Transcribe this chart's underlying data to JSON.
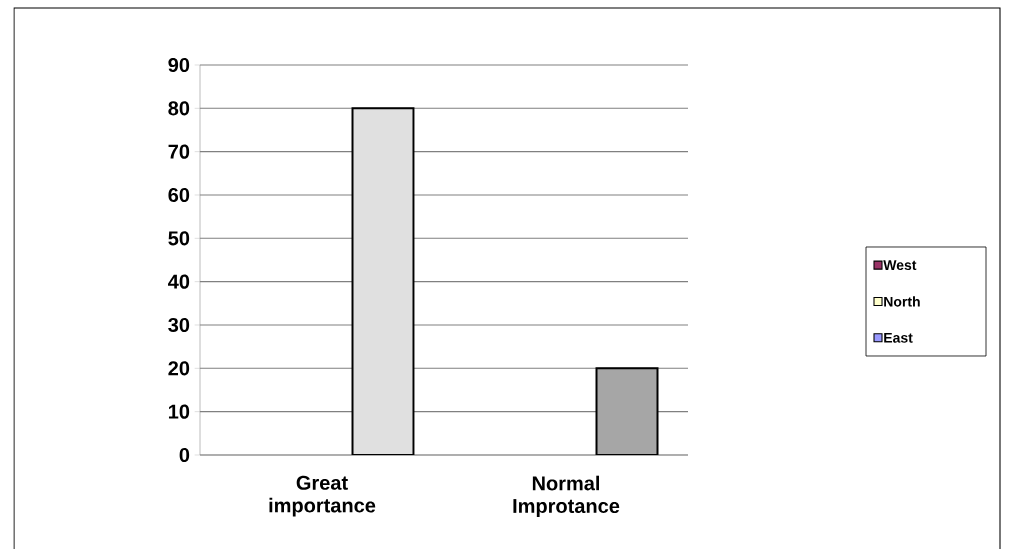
{
  "chart_data": {
    "type": "bar",
    "categories": [
      "Great importance",
      "Normal Improtance"
    ],
    "series": [
      {
        "name": "West",
        "color": "#993366",
        "values": [
          null,
          null
        ]
      },
      {
        "name": "North",
        "color": "#ffffcc",
        "values": [
          null,
          null
        ]
      },
      {
        "name": "East",
        "color": "#9999ff",
        "colors": [
          "#e0e0e0",
          "#a6a6a6"
        ],
        "values": [
          80,
          20
        ]
      }
    ],
    "ylim": [
      0,
      90
    ],
    "yticks": [
      0,
      10,
      20,
      30,
      40,
      50,
      60,
      70,
      80,
      90
    ],
    "grid": "y",
    "legend": "right"
  }
}
